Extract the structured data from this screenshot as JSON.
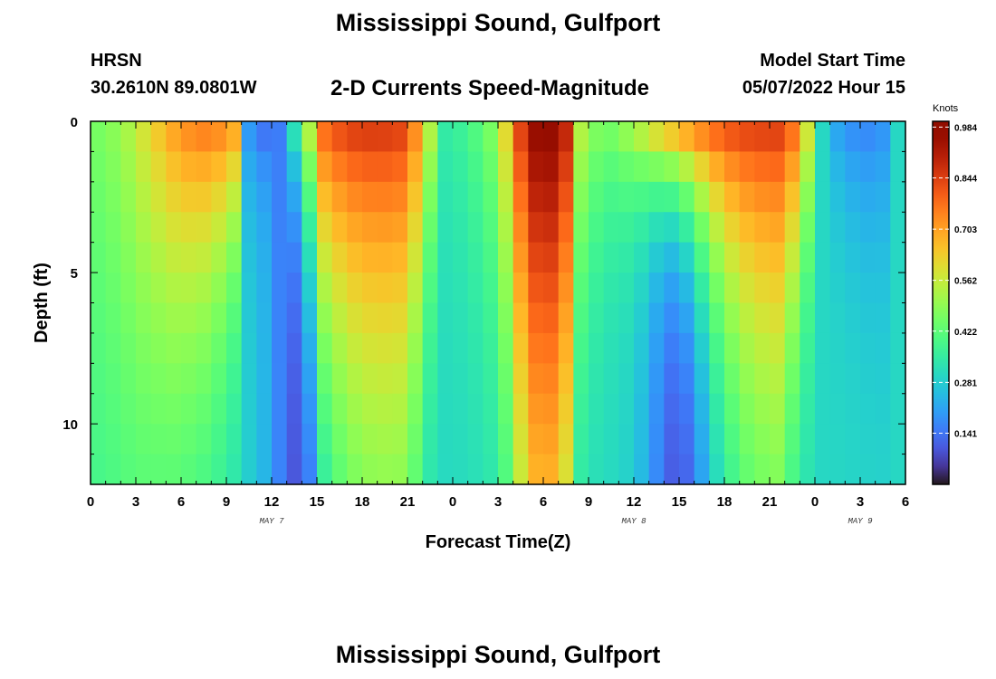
{
  "header": {
    "title": "Mississippi Sound, Gulfport",
    "station": "HRSN",
    "coords": "30.2610N  89.0801W",
    "subtitle": "2-D Currents Speed-Magnitude",
    "model_label": "Model Start Time",
    "model_time": "05/07/2022 Hour 15"
  },
  "footer": {
    "title": "Mississippi Sound, Gulfport"
  },
  "chart_data": {
    "type": "heatmap",
    "title": "2-D Currents Speed-Magnitude",
    "xlabel": "Forecast Time(Z)",
    "ylabel": "Depth (ft)",
    "colorbar_label": "Knots",
    "colorbar_ticks": [
      0.141,
      0.281,
      0.422,
      0.562,
      0.703,
      0.844,
      0.984
    ],
    "color_range": [
      0,
      1.0
    ],
    "colormap": "turbo",
    "x_hours": [
      0,
      54
    ],
    "x_ticks": [
      {
        "h": 0,
        "label": "0"
      },
      {
        "h": 3,
        "label": "3"
      },
      {
        "h": 6,
        "label": "6"
      },
      {
        "h": 9,
        "label": "9"
      },
      {
        "h": 12,
        "label": "12"
      },
      {
        "h": 15,
        "label": "15"
      },
      {
        "h": 18,
        "label": "18"
      },
      {
        "h": 21,
        "label": "21"
      },
      {
        "h": 24,
        "label": "0"
      },
      {
        "h": 27,
        "label": "3"
      },
      {
        "h": 30,
        "label": "6"
      },
      {
        "h": 33,
        "label": "9"
      },
      {
        "h": 36,
        "label": "12"
      },
      {
        "h": 39,
        "label": "15"
      },
      {
        "h": 42,
        "label": "18"
      },
      {
        "h": 45,
        "label": "21"
      },
      {
        "h": 48,
        "label": "0"
      },
      {
        "h": 51,
        "label": "3"
      },
      {
        "h": 54,
        "label": "6"
      }
    ],
    "day_labels": [
      {
        "h": 12,
        "label": "MAY 7"
      },
      {
        "h": 36,
        "label": "MAY 8"
      },
      {
        "h": 51,
        "label": "MAY 9"
      }
    ],
    "depth_range_ft": [
      0,
      12
    ],
    "y_ticks": [
      0,
      5,
      10
    ],
    "depth_rows_ft": [
      0.5,
      1.5,
      2.5,
      3.5,
      4.5,
      5.5,
      6.5,
      7.5,
      8.5,
      9.5,
      10.5,
      11.5
    ],
    "speed_profile": {
      "hours": [
        0,
        2,
        4,
        6,
        8,
        9.5,
        10.5,
        11.5,
        12.5,
        14,
        15.5,
        17,
        19,
        21,
        22.5,
        23.5,
        25,
        27,
        28.5,
        29.5,
        30.5,
        31.5,
        32.5,
        34,
        36,
        38,
        40,
        42,
        44,
        45.5,
        46.5,
        47.5,
        48.5,
        49.5,
        51,
        52.5,
        53.5,
        54
      ],
      "surface_knots": [
        0.45,
        0.5,
        0.62,
        0.74,
        0.78,
        0.72,
        0.18,
        0.12,
        0.15,
        0.45,
        0.8,
        0.86,
        0.87,
        0.85,
        0.55,
        0.35,
        0.38,
        0.5,
        0.85,
        0.97,
        0.98,
        0.9,
        0.55,
        0.45,
        0.55,
        0.7,
        0.78,
        0.84,
        0.86,
        0.86,
        0.8,
        0.6,
        0.3,
        0.2,
        0.15,
        0.18,
        0.3,
        0.5
      ],
      "decay_ft": [
        20,
        18,
        12,
        9,
        7,
        5,
        3,
        2,
        2,
        4,
        10,
        10,
        11,
        11,
        6,
        5,
        6,
        8,
        16,
        20,
        20,
        16,
        7,
        4,
        3,
        3,
        4,
        6,
        9,
        10,
        7,
        5,
        3,
        3,
        4,
        5,
        8,
        12
      ],
      "bottom_knots": 0.3,
      "bottom_minimum_hours": [
        14,
        39
      ]
    }
  }
}
